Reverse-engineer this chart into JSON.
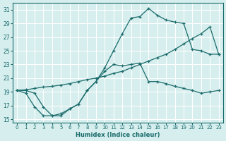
{
  "xlabel": "Humidex (Indice chaleur)",
  "xlim": [
    -0.5,
    23.5
  ],
  "ylim": [
    14.5,
    32
  ],
  "yticks": [
    15,
    17,
    19,
    21,
    23,
    25,
    27,
    29,
    31
  ],
  "xticks": [
    0,
    1,
    2,
    3,
    4,
    5,
    6,
    7,
    8,
    9,
    10,
    11,
    12,
    13,
    14,
    15,
    16,
    17,
    18,
    19,
    20,
    21,
    22,
    23
  ],
  "bg_color": "#d6eeee",
  "grid_color": "#ffffff",
  "line_color": "#1a6b6b",
  "line1_x": [
    0,
    1,
    2,
    3,
    4,
    5,
    6,
    7,
    8,
    9,
    10,
    11,
    12,
    13,
    14,
    15,
    16,
    17,
    18,
    19,
    20,
    21,
    22,
    23
  ],
  "line1_y": [
    19.2,
    18.8,
    16.8,
    15.5,
    15.5,
    15.8,
    16.5,
    17.2,
    19.2,
    20.5,
    22.0,
    23.0,
    22.8,
    23.0,
    23.2,
    20.5,
    20.5,
    20.2,
    19.8,
    19.5,
    19.2,
    18.8,
    19.0,
    19.2
  ],
  "line2_x": [
    0,
    1,
    2,
    3,
    4,
    5,
    6,
    7,
    8,
    9,
    10,
    11,
    12,
    13,
    14,
    15,
    16,
    17,
    18,
    19,
    20,
    21,
    22,
    23
  ],
  "line2_y": [
    19.2,
    19.2,
    18.8,
    16.8,
    15.5,
    15.5,
    16.5,
    17.2,
    19.2,
    20.5,
    22.5,
    25.0,
    27.5,
    29.8,
    30.0,
    31.2,
    30.2,
    29.5,
    29.2,
    29.0,
    25.2,
    25.0,
    24.5,
    24.5
  ],
  "line3_x": [
    0,
    1,
    2,
    3,
    4,
    5,
    6,
    7,
    8,
    9,
    10,
    11,
    12,
    13,
    14,
    15,
    16,
    17,
    18,
    19,
    20,
    21,
    22,
    23
  ],
  "line3_y": [
    19.2,
    19.3,
    19.5,
    19.7,
    19.8,
    20.0,
    20.2,
    20.5,
    20.8,
    21.0,
    21.3,
    21.7,
    22.0,
    22.5,
    23.0,
    23.5,
    24.0,
    24.5,
    25.2,
    26.0,
    26.8,
    27.5,
    28.5,
    24.5
  ]
}
